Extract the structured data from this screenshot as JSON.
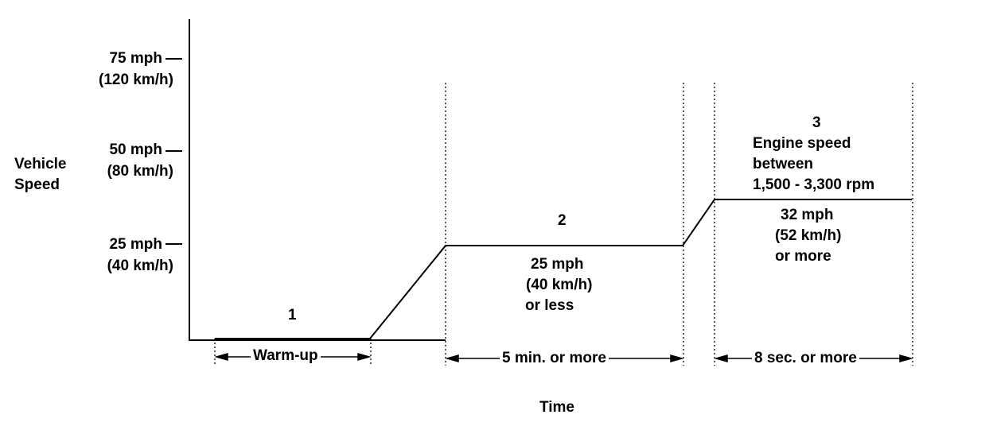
{
  "y_axis": {
    "title_line1": "Vehicle",
    "title_line2": "Speed",
    "ticks": [
      {
        "mph": "75 mph",
        "kmh": "(120 km/h)"
      },
      {
        "mph": "50 mph",
        "kmh": "(80 km/h)"
      },
      {
        "mph": "25 mph",
        "kmh": "(40 km/h)"
      }
    ]
  },
  "x_axis": {
    "title": "Time"
  },
  "phases": [
    {
      "number": "1",
      "duration": "Warm-up"
    },
    {
      "number": "2",
      "speed_lines": [
        "25 mph",
        "(40 km/h)",
        "or less"
      ],
      "duration": "5 min. or more"
    },
    {
      "number": "3",
      "condition_lines": [
        "Engine speed",
        "between",
        "1,500 - 3,300 rpm"
      ],
      "speed_lines": [
        "32 mph",
        "(52 km/h)",
        "or more"
      ],
      "duration": "8 sec. or more"
    }
  ]
}
